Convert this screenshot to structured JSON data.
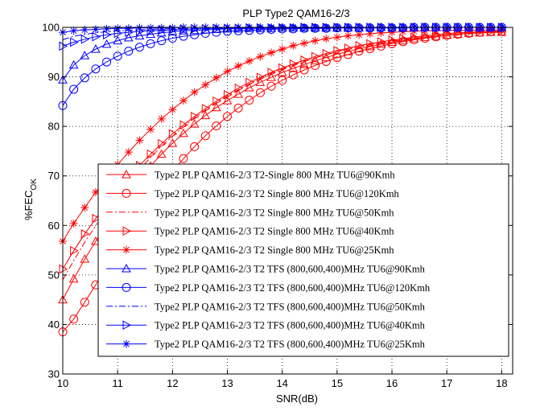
{
  "chart_data": {
    "type": "line",
    "title": "PLP Type2 QAM16-2/3",
    "xlabel": "SNR(dB)",
    "ylabel_main": "%FEC",
    "ylabel_sub": "OK",
    "xlim": [
      10,
      18.2
    ],
    "ylim": [
      30,
      100
    ],
    "xticks": [
      10,
      11,
      12,
      13,
      14,
      15,
      16,
      17,
      18
    ],
    "yticks": [
      30,
      40,
      50,
      60,
      70,
      80,
      90,
      100
    ],
    "grid": true,
    "legend_position": "bottom-right",
    "x": [
      10.0,
      10.2,
      10.4,
      10.6,
      10.8,
      11.0,
      11.2,
      11.4,
      11.6,
      11.8,
      12.0,
      12.2,
      12.4,
      12.6,
      12.8,
      13.0,
      13.2,
      13.4,
      13.6,
      13.8,
      14.0,
      14.2,
      14.4,
      14.6,
      14.8,
      15.0,
      15.2,
      15.4,
      15.6,
      15.8,
      16.0,
      16.2,
      16.4,
      16.6,
      16.8,
      17.0,
      17.2,
      17.4,
      17.6,
      17.8,
      18.0
    ],
    "series": [
      {
        "name": "Type2 PLP QAM16-2/3 T2-Single 800 MHz TU6@90Kmh",
        "color": "#ff0000",
        "dash": "solid",
        "marker": "triangle-up",
        "values": [
          45,
          49.2,
          53.2,
          56.8,
          60.3,
          63.5,
          66.6,
          69.4,
          72,
          74.4,
          76.6,
          78.6,
          80.5,
          82.2,
          83.8,
          85.2,
          86.5,
          87.8,
          88.9,
          89.9,
          90.9,
          91.7,
          92.5,
          93.3,
          93.9,
          94.6,
          95.1,
          95.7,
          96.1,
          96.6,
          97,
          97.3,
          97.7,
          98,
          98.2,
          98.4,
          98.6,
          98.8,
          98.9,
          99,
          99
        ]
      },
      {
        "name": "Type2 PLP QAM16-2/3 T2 Single 800 MHz TU6@120Kmh",
        "color": "#ff0000",
        "dash": "solid",
        "marker": "circle",
        "values": [
          38.5,
          41.1,
          44.5,
          48,
          51.7,
          55.2,
          58.7,
          62,
          65.2,
          68.1,
          70.9,
          73.5,
          75.9,
          78.1,
          80.1,
          82,
          83.7,
          85.3,
          86.8,
          88.1,
          89.3,
          90.4,
          91.4,
          92.3,
          93.1,
          93.9,
          94.5,
          95.2,
          95.7,
          96.2,
          96.7,
          97.1,
          97.5,
          97.8,
          98.1,
          98.4,
          98.6,
          98.8,
          99,
          99.1,
          99.2
        ]
      },
      {
        "name": "Type2 PLP QAM16-2/3 T2 Single 800 MHz TU6@50Kmh",
        "color": "#ff0000",
        "dash": "dashdot",
        "marker": "none",
        "values": [
          49,
          52.9,
          56.6,
          59.9,
          63.1,
          66,
          68.8,
          71.3,
          73.7,
          76,
          78,
          79.9,
          81.7,
          83.3,
          84.8,
          86.2,
          87.4,
          88.6,
          89.7,
          90.7,
          91.6,
          92.4,
          93.2,
          93.8,
          94.5,
          95,
          95.6,
          96,
          96.5,
          96.8,
          97.2,
          97.5,
          97.8,
          98,
          98.2,
          98.4,
          98.6,
          98.8,
          98.9,
          99,
          99.1
        ]
      },
      {
        "name": "Type2 PLP QAM16-2/3 T2 Single 800 MHz TU6@40Kmh",
        "color": "#ff0000",
        "dash": "solid",
        "marker": "triangle-right",
        "values": [
          51.2,
          54.9,
          58.3,
          61.4,
          64.4,
          67.1,
          69.7,
          72.1,
          74.4,
          76.5,
          78.5,
          80.3,
          82,
          83.6,
          85.1,
          86.4,
          87.7,
          88.9,
          89.9,
          90.9,
          91.8,
          92.6,
          93.4,
          94.1,
          94.7,
          95.3,
          95.8,
          96.3,
          96.7,
          97.1,
          97.4,
          97.7,
          98,
          98.3,
          98.5,
          98.7,
          98.9,
          99,
          99.1,
          99.2,
          99.3
        ]
      },
      {
        "name": "Type2 PLP QAM16-2/3 T2 Single 800 MHz TU6@25Kmh",
        "color": "#ff0000",
        "dash": "solid",
        "marker": "star",
        "values": [
          56.8,
          60.4,
          63.6,
          66.7,
          69.6,
          72.3,
          74.8,
          77.2,
          79.4,
          81.5,
          83.4,
          85.2,
          86.9,
          88.4,
          89.8,
          91.1,
          92.2,
          93.2,
          94.1,
          94.9,
          95.6,
          96.3,
          96.8,
          97.3,
          97.7,
          98,
          98.3,
          98.5,
          98.7,
          98.9,
          99,
          99.1,
          99.2,
          99.3,
          99.3,
          99.4,
          99.4,
          99.4,
          99.5,
          99.5,
          99.5
        ]
      },
      {
        "name": "Type2 PLP QAM16-2/3 T2 TFS (800,600,400)MHz TU6@90Kmh",
        "color": "#0000ff",
        "dash": "solid",
        "marker": "triangle-up",
        "values": [
          89.4,
          92.4,
          94.3,
          95.6,
          96.6,
          97.3,
          97.9,
          98.3,
          98.6,
          98.9,
          99.1,
          99.3,
          99.4,
          99.5,
          99.6,
          99.7,
          99.7,
          99.8,
          99.8,
          99.8,
          99.9,
          99.9,
          99.9,
          99.9,
          99.9,
          99.9,
          99.9,
          99.9,
          100,
          100,
          100,
          100,
          100,
          100,
          100,
          100,
          100,
          100,
          100,
          100,
          100
        ]
      },
      {
        "name": "Type2 PLP QAM16-2/3 T2 TFS (800,600,400)MHz TU6@120Kmh",
        "color": "#0000ff",
        "dash": "solid",
        "marker": "circle",
        "values": [
          84.2,
          87.5,
          89.8,
          91.6,
          93,
          94.2,
          95.2,
          96,
          96.7,
          97.3,
          97.8,
          98.2,
          98.5,
          98.8,
          99,
          99.2,
          99.3,
          99.4,
          99.5,
          99.6,
          99.7,
          99.7,
          99.8,
          99.8,
          99.8,
          99.9,
          99.9,
          99.9,
          99.9,
          99.9,
          99.9,
          99.9,
          100,
          100,
          100,
          100,
          100,
          100,
          100,
          100,
          100
        ]
      },
      {
        "name": "Type2 PLP QAM16-2/3 T2 TFS (800,600,400)MHz TU6@50Kmh",
        "color": "#0000ff",
        "dash": "dashdot",
        "marker": "none",
        "values": [
          97.5,
          98.2,
          98.6,
          98.9,
          99.1,
          99.3,
          99.4,
          99.5,
          99.6,
          99.7,
          99.7,
          99.8,
          99.8,
          99.8,
          99.9,
          99.9,
          99.9,
          99.9,
          99.9,
          99.9,
          100,
          100,
          100,
          100,
          100,
          100,
          100,
          100,
          100,
          100,
          100,
          100,
          100,
          100,
          100,
          100,
          100,
          100,
          100,
          100,
          100
        ]
      },
      {
        "name": "Type2 PLP QAM16-2/3 T2 TFS (800,600,400)MHz TU6@40Kmh",
        "color": "#0000ff",
        "dash": "solid",
        "marker": "triangle-right",
        "values": [
          96.2,
          97,
          97.6,
          98.1,
          98.5,
          98.8,
          99,
          99.2,
          99.3,
          99.4,
          99.5,
          99.6,
          99.7,
          99.7,
          99.8,
          99.8,
          99.8,
          99.9,
          99.9,
          99.9,
          99.9,
          99.9,
          100,
          100,
          100,
          100,
          100,
          100,
          100,
          100,
          100,
          100,
          100,
          100,
          100,
          100,
          100,
          100,
          100,
          100,
          100
        ]
      },
      {
        "name": "Type2 PLP QAM16-2/3 T2 TFS (800,600,400)MHz TU6@25Kmh",
        "color": "#0000ff",
        "dash": "solid",
        "marker": "star",
        "values": [
          99,
          99.3,
          99.5,
          99.6,
          99.7,
          99.8,
          99.8,
          99.9,
          99.9,
          99.9,
          99.9,
          100,
          100,
          100,
          100,
          100,
          100,
          100,
          100,
          100,
          100,
          100,
          100,
          100,
          100,
          100,
          100,
          100,
          100,
          100,
          100,
          100,
          100,
          100,
          100,
          100,
          100,
          100,
          100,
          100,
          100
        ]
      }
    ]
  }
}
